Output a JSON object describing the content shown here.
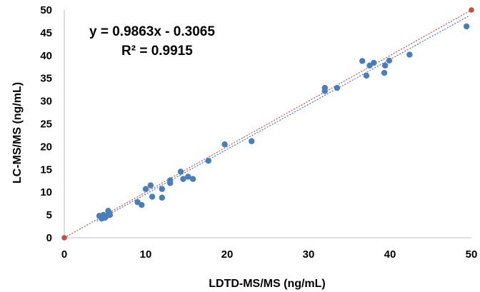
{
  "chart_data": {
    "type": "scatter",
    "title": "",
    "xlabel": "LDTD-MS/MS (ng/mL)",
    "ylabel": "LC-MS/MS (ng/mL)",
    "xlim": [
      0,
      50
    ],
    "ylim": [
      0,
      50
    ],
    "x_ticks": [
      "0",
      "10",
      "20",
      "30",
      "40",
      "50"
    ],
    "y_ticks": [
      "0",
      "5",
      "10",
      "15",
      "20",
      "25",
      "30",
      "35",
      "40",
      "45",
      "50"
    ],
    "grid": false,
    "legend": "none",
    "annotations": {
      "equation": "y = 0.9863x - 0.3065",
      "r_squared": "R² = 0.9915"
    },
    "colors": {
      "points": "#4a7ebb",
      "identity_line": "#c0504d",
      "trend_line": "#4472c4"
    },
    "series": [
      {
        "values": [
          {
            "x": 4.3,
            "y": 4.8
          },
          {
            "x": 4.6,
            "y": 4.2
          },
          {
            "x": 4.7,
            "y": 4.6
          },
          {
            "x": 4.8,
            "y": 5.0
          },
          {
            "x": 5.0,
            "y": 4.4
          },
          {
            "x": 5.2,
            "y": 4.8
          },
          {
            "x": 5.5,
            "y": 5.5
          },
          {
            "x": 5.6,
            "y": 5.0
          },
          {
            "x": 5.4,
            "y": 5.9
          },
          {
            "x": 9.0,
            "y": 7.8
          },
          {
            "x": 9.5,
            "y": 7.2
          },
          {
            "x": 10.0,
            "y": 10.7
          },
          {
            "x": 10.6,
            "y": 11.5
          },
          {
            "x": 10.8,
            "y": 9.0
          },
          {
            "x": 12.0,
            "y": 8.8
          },
          {
            "x": 12.0,
            "y": 10.7
          },
          {
            "x": 13.0,
            "y": 12.0
          },
          {
            "x": 13.0,
            "y": 12.6
          },
          {
            "x": 14.3,
            "y": 14.5
          },
          {
            "x": 14.6,
            "y": 12.9
          },
          {
            "x": 15.2,
            "y": 13.4
          },
          {
            "x": 15.8,
            "y": 12.9
          },
          {
            "x": 17.7,
            "y": 16.9
          },
          {
            "x": 19.7,
            "y": 20.5
          },
          {
            "x": 23.0,
            "y": 21.2
          },
          {
            "x": 32.0,
            "y": 32.2
          },
          {
            "x": 32.0,
            "y": 32.9
          },
          {
            "x": 33.5,
            "y": 32.9
          },
          {
            "x": 36.6,
            "y": 38.8
          },
          {
            "x": 37.1,
            "y": 35.6
          },
          {
            "x": 37.5,
            "y": 37.8
          },
          {
            "x": 38.0,
            "y": 38.4
          },
          {
            "x": 39.3,
            "y": 36.2
          },
          {
            "x": 39.4,
            "y": 37.8
          },
          {
            "x": 39.9,
            "y": 38.9
          },
          {
            "x": 42.4,
            "y": 40.2
          },
          {
            "x": 49.4,
            "y": 46.4
          }
        ]
      }
    ],
    "identity_line": [
      {
        "x": 0,
        "y": 0
      },
      {
        "x": 50,
        "y": 50
      }
    ],
    "trend_line": {
      "slope": 0.9863,
      "intercept": -0.3065
    }
  }
}
